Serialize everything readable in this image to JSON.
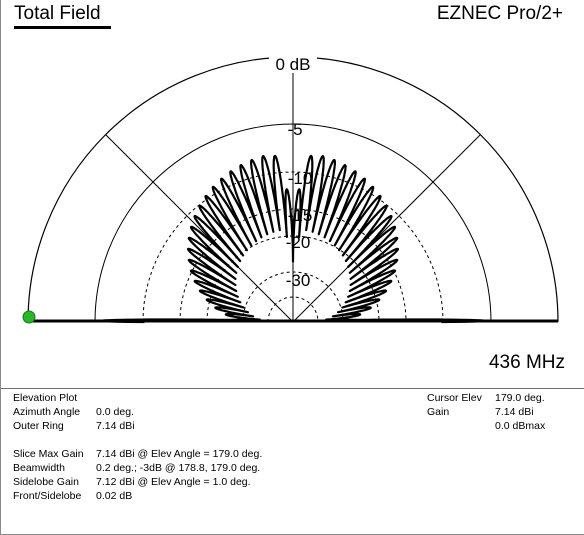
{
  "header": {
    "title": "Total Field",
    "app": "EZNEC Pro/2+"
  },
  "plot": {
    "ring_labels": [
      "0 dB",
      "-5",
      "-10",
      "-15",
      "-20",
      "-30"
    ],
    "frequency": "436 MHz",
    "cursor_marker_color": "#2bb52b"
  },
  "info_left": {
    "plot_type": "Elevation Plot",
    "rows1": [
      {
        "label": "Azimuth Angle",
        "value": "0.0 deg."
      },
      {
        "label": "Outer Ring",
        "value": "7.14 dBi"
      }
    ],
    "rows2": [
      {
        "label": "Slice Max Gain",
        "value": "7.14 dBi @ Elev Angle = 179.0 deg."
      },
      {
        "label": "Beamwidth",
        "value": "0.2 deg.; -3dB @ 178.8, 179.0 deg."
      },
      {
        "label": "Sidelobe Gain",
        "value": "7.12 dBi @ Elev Angle = 1.0 deg."
      },
      {
        "label": "Front/Sidelobe",
        "value": "0.02 dB"
      }
    ]
  },
  "info_right": {
    "rows": [
      {
        "label": "Cursor Elev",
        "value": "179.0 deg."
      },
      {
        "label": "Gain",
        "value": "7.14 dBi"
      },
      {
        "label": "",
        "value": "0.0 dBmax"
      }
    ]
  }
}
